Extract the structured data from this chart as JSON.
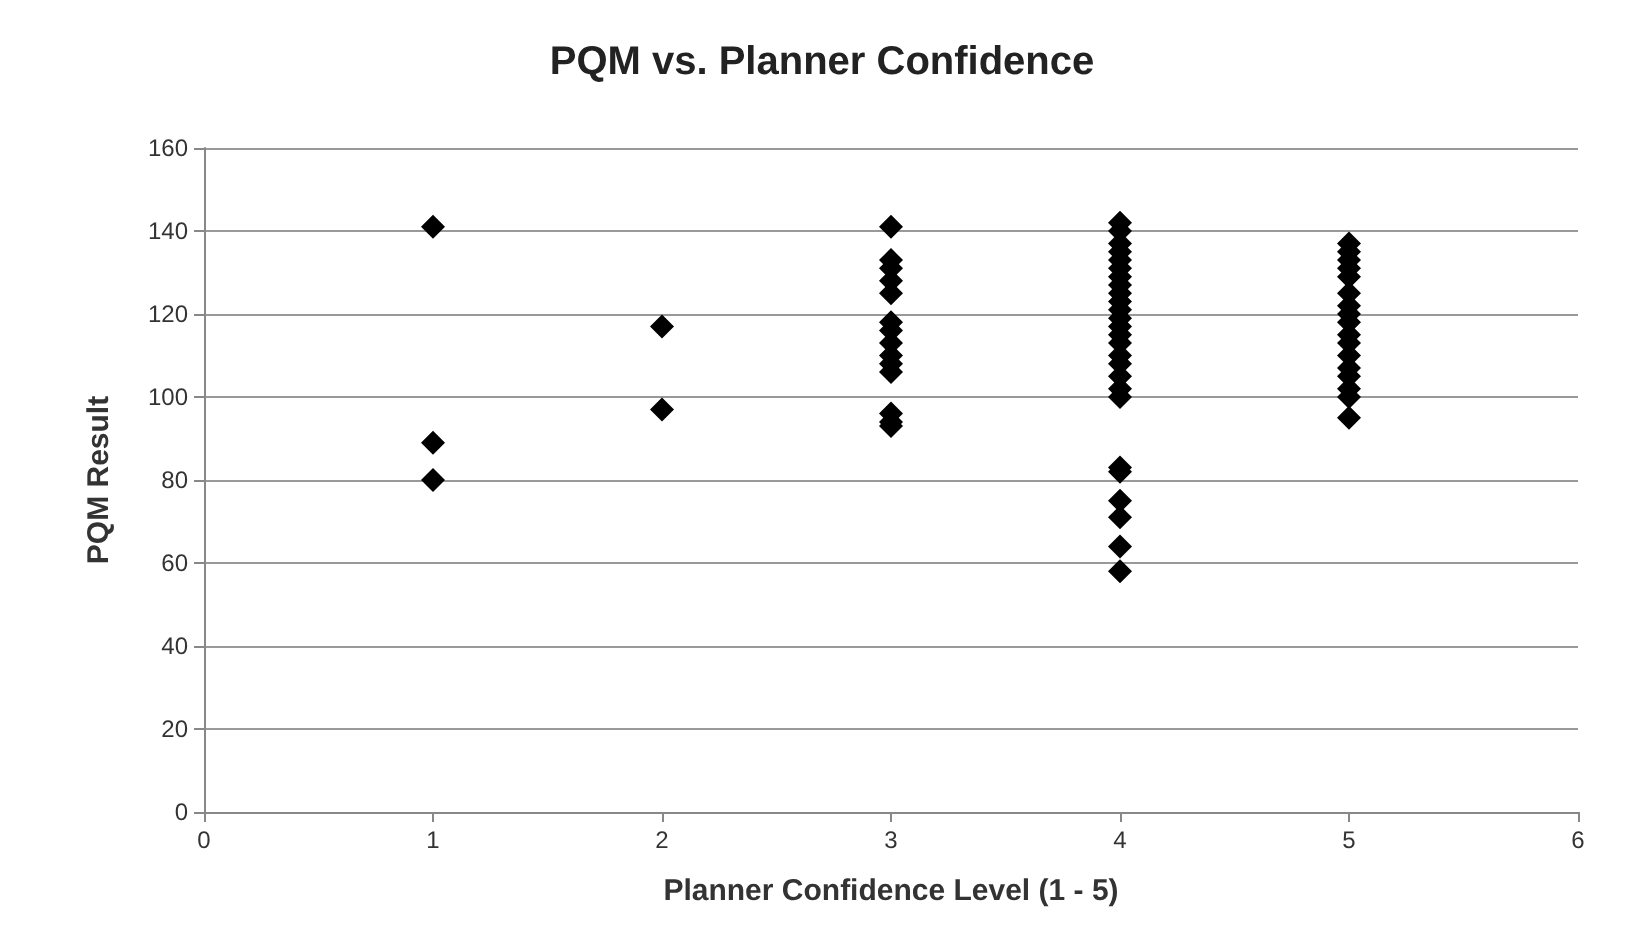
{
  "chart_data": {
    "type": "scatter",
    "title": "PQM vs. Planner Confidence",
    "xlabel": "Planner Confidence Level (1 - 5)",
    "ylabel": "PQM Result",
    "xlim": [
      0,
      6
    ],
    "xticks": [
      0,
      1,
      2,
      3,
      4,
      5,
      6
    ],
    "ylim": [
      0,
      160
    ],
    "yticks": [
      0,
      20,
      40,
      60,
      80,
      100,
      120,
      140,
      160
    ],
    "grid": "y",
    "marker": "diamond",
    "series": [
      {
        "color": "#000000",
        "x": [
          1,
          1,
          1,
          2,
          2,
          3,
          3,
          3,
          3,
          3,
          3,
          3,
          3,
          3,
          3,
          3,
          3,
          3,
          3,
          4,
          4,
          4,
          4,
          4,
          4,
          4,
          4,
          4,
          4,
          4,
          4,
          4,
          4,
          4,
          4,
          4,
          4,
          4,
          4,
          4,
          4,
          4,
          4,
          4,
          4,
          5,
          5,
          5,
          5,
          5,
          5,
          5,
          5,
          5,
          5,
          5,
          5,
          5,
          5,
          5,
          5,
          5
        ],
        "values": [
          141,
          89,
          80,
          117,
          97,
          141,
          133,
          131,
          128,
          125,
          118,
          116,
          113,
          110,
          108,
          106,
          96,
          94,
          93,
          142,
          140,
          137,
          135,
          133,
          131,
          129,
          127,
          125,
          123,
          121,
          119,
          117,
          115,
          113,
          110,
          108,
          105,
          102,
          100,
          83,
          82,
          75,
          71,
          64,
          58,
          137,
          135,
          133,
          131,
          129,
          125,
          122,
          120,
          118,
          115,
          113,
          110,
          107,
          105,
          102,
          100,
          95
        ]
      }
    ]
  }
}
